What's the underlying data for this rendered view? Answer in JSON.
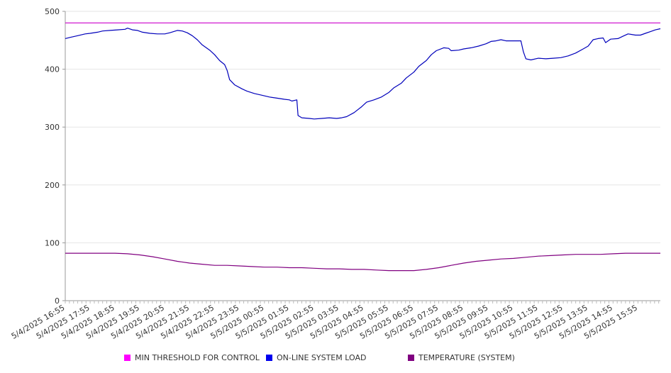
{
  "chart_data": {
    "type": "line",
    "ylim": [
      0,
      500
    ],
    "yticks": [
      0,
      100,
      200,
      300,
      400,
      500
    ],
    "grid": true,
    "legend_position": "bottom",
    "x_tick_labels": [
      "5/4/2025 16:55",
      "5/4/2025 17:55",
      "5/4/2025 18:55",
      "5/4/2025 19:55",
      "5/4/2025 20:55",
      "5/4/2025 21:55",
      "5/4/2025 22:55",
      "5/4/2025 23:55",
      "5/5/2025 00:55",
      "5/5/2025 01:55",
      "5/5/2025 02:55",
      "5/5/2025 03:55",
      "5/5/2025 04:55",
      "5/5/2025 05:55",
      "5/5/2025 06:55",
      "5/5/2025 07:55",
      "5/5/2025 08:55",
      "5/5/2025 09:55",
      "5/5/2025 10:55",
      "5/5/2025 11:55",
      "5/5/2025 12:55",
      "5/5/2025 13:55",
      "5/5/2025 14:55",
      "5/5/2025 15:55"
    ],
    "x_range_hours": [
      0,
      23.9
    ],
    "series": [
      {
        "name": "MIN THRESHOLD FOR CONTROL",
        "color": "#cc00cc",
        "points": [
          [
            0,
            480
          ],
          [
            23.9,
            480
          ]
        ]
      },
      {
        "name": "ON-LINE SYSTEM LOAD",
        "color": "#0000bb",
        "points": [
          [
            0,
            453
          ],
          [
            0.2,
            455
          ],
          [
            0.5,
            458
          ],
          [
            0.8,
            461
          ],
          [
            1.0,
            462
          ],
          [
            1.3,
            464
          ],
          [
            1.5,
            466
          ],
          [
            1.8,
            467
          ],
          [
            2.1,
            468
          ],
          [
            2.4,
            469
          ],
          [
            2.5,
            471
          ],
          [
            2.7,
            468
          ],
          [
            2.9,
            467
          ],
          [
            3.1,
            464
          ],
          [
            3.4,
            462
          ],
          [
            3.7,
            461
          ],
          [
            4.0,
            461
          ],
          [
            4.2,
            463
          ],
          [
            4.5,
            467
          ],
          [
            4.7,
            466
          ],
          [
            4.9,
            463
          ],
          [
            5.1,
            458
          ],
          [
            5.3,
            451
          ],
          [
            5.5,
            442
          ],
          [
            5.8,
            433
          ],
          [
            6.0,
            425
          ],
          [
            6.2,
            415
          ],
          [
            6.4,
            408
          ],
          [
            6.5,
            398
          ],
          [
            6.6,
            382
          ],
          [
            6.8,
            373
          ],
          [
            7.1,
            366
          ],
          [
            7.3,
            362
          ],
          [
            7.6,
            358
          ],
          [
            7.9,
            355
          ],
          [
            8.2,
            352
          ],
          [
            8.5,
            350
          ],
          [
            8.8,
            348
          ],
          [
            9.0,
            347
          ],
          [
            9.1,
            345
          ],
          [
            9.3,
            347
          ],
          [
            9.35,
            320
          ],
          [
            9.5,
            316
          ],
          [
            9.8,
            315
          ],
          [
            10.0,
            314
          ],
          [
            10.3,
            315
          ],
          [
            10.6,
            316
          ],
          [
            10.9,
            315
          ],
          [
            11.1,
            316
          ],
          [
            11.3,
            318
          ],
          [
            11.6,
            325
          ],
          [
            11.9,
            335
          ],
          [
            12.1,
            343
          ],
          [
            12.4,
            347
          ],
          [
            12.7,
            352
          ],
          [
            13.0,
            360
          ],
          [
            13.2,
            368
          ],
          [
            13.5,
            376
          ],
          [
            13.7,
            385
          ],
          [
            14.0,
            395
          ],
          [
            14.2,
            405
          ],
          [
            14.5,
            415
          ],
          [
            14.7,
            425
          ],
          [
            14.9,
            432
          ],
          [
            15.2,
            437
          ],
          [
            15.4,
            436
          ],
          [
            15.5,
            432
          ],
          [
            15.8,
            433
          ],
          [
            16.0,
            435
          ],
          [
            16.3,
            437
          ],
          [
            16.6,
            440
          ],
          [
            16.9,
            444
          ],
          [
            17.1,
            448
          ],
          [
            17.3,
            449
          ],
          [
            17.5,
            451
          ],
          [
            17.7,
            449
          ],
          [
            18.0,
            449
          ],
          [
            18.3,
            449
          ],
          [
            18.4,
            430
          ],
          [
            18.5,
            418
          ],
          [
            18.7,
            416
          ],
          [
            19.0,
            419
          ],
          [
            19.3,
            418
          ],
          [
            19.6,
            419
          ],
          [
            19.9,
            420
          ],
          [
            20.2,
            423
          ],
          [
            20.5,
            428
          ],
          [
            20.8,
            435
          ],
          [
            21.0,
            440
          ],
          [
            21.2,
            451
          ],
          [
            21.4,
            453
          ],
          [
            21.6,
            454
          ],
          [
            21.7,
            446
          ],
          [
            21.9,
            452
          ],
          [
            22.2,
            453
          ],
          [
            22.4,
            457
          ],
          [
            22.6,
            461
          ],
          [
            22.9,
            459
          ],
          [
            23.1,
            459
          ],
          [
            23.3,
            462
          ],
          [
            23.5,
            465
          ],
          [
            23.7,
            468
          ],
          [
            23.9,
            470
          ]
        ]
      },
      {
        "name": "TEMPERATURE (SYSTEM)",
        "color": "#800080",
        "points": [
          [
            0,
            82
          ],
          [
            1.0,
            82
          ],
          [
            2.0,
            82
          ],
          [
            2.5,
            81
          ],
          [
            3.0,
            79
          ],
          [
            3.5,
            76
          ],
          [
            4.0,
            72
          ],
          [
            4.5,
            68
          ],
          [
            5.0,
            65
          ],
          [
            5.5,
            63
          ],
          [
            6.0,
            61
          ],
          [
            6.5,
            61
          ],
          [
            7.0,
            60
          ],
          [
            7.5,
            59
          ],
          [
            8.0,
            58
          ],
          [
            8.5,
            58
          ],
          [
            9.0,
            57
          ],
          [
            9.5,
            57
          ],
          [
            10.0,
            56
          ],
          [
            10.5,
            55
          ],
          [
            11.0,
            55
          ],
          [
            11.5,
            54
          ],
          [
            12.0,
            54
          ],
          [
            12.5,
            53
          ],
          [
            13.0,
            52
          ],
          [
            13.5,
            52
          ],
          [
            14.0,
            52
          ],
          [
            14.5,
            54
          ],
          [
            15.0,
            57
          ],
          [
            15.5,
            61
          ],
          [
            16.0,
            65
          ],
          [
            16.5,
            68
          ],
          [
            17.0,
            70
          ],
          [
            17.5,
            72
          ],
          [
            18.0,
            73
          ],
          [
            18.5,
            75
          ],
          [
            19.0,
            77
          ],
          [
            19.5,
            78
          ],
          [
            20.0,
            79
          ],
          [
            20.5,
            80
          ],
          [
            21.0,
            80
          ],
          [
            21.5,
            80
          ],
          [
            22.0,
            81
          ],
          [
            22.5,
            82
          ],
          [
            23.0,
            82
          ],
          [
            23.5,
            82
          ],
          [
            23.9,
            82
          ]
        ]
      }
    ]
  },
  "legend": {
    "items": [
      {
        "label": "MIN THRESHOLD FOR CONTROL",
        "color": "#ff00ff"
      },
      {
        "label": "ON-LINE SYSTEM LOAD",
        "color": "#0000ee"
      },
      {
        "label": "TEMPERATURE (SYSTEM)",
        "color": "#800080"
      }
    ]
  }
}
